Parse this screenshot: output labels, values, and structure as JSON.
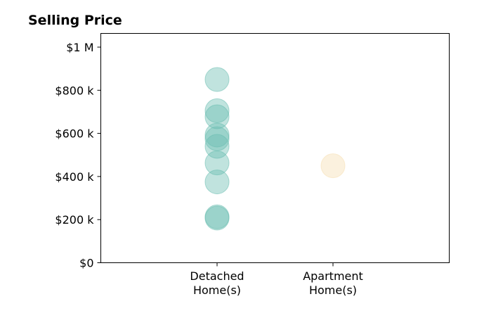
{
  "chart_data": {
    "type": "scatter",
    "title": "Selling Price",
    "xlabel": "",
    "ylabel": "",
    "categories": [
      "Detached\nHome(s)",
      "Apartment\nHome(s)"
    ],
    "ylim": [
      0,
      1000000
    ],
    "yticks": [
      {
        "value": 0,
        "label": "$0"
      },
      {
        "value": 200000,
        "label": "$200 k"
      },
      {
        "value": 400000,
        "label": "$400 k"
      },
      {
        "value": 600000,
        "label": "$600 k"
      },
      {
        "value": 800000,
        "label": "$800 k"
      },
      {
        "value": 1000000,
        "label": "$1 M"
      }
    ],
    "grid": false,
    "series": [
      {
        "category": "Detached\nHome(s)",
        "color": "#69bdb1",
        "values": [
          850000,
          705000,
          677000,
          592000,
          575000,
          540000,
          463000,
          375000,
          213000,
          207000
        ]
      },
      {
        "category": "Apartment\nHome(s)",
        "color": "#f5deb0",
        "values": [
          450000
        ]
      }
    ]
  }
}
